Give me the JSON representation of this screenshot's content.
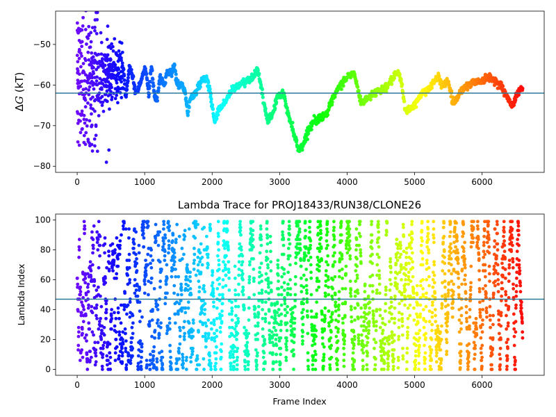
{
  "chart_data": [
    {
      "type": "scatter",
      "title": "",
      "xlabel": "",
      "ylabel": "ΔG (kT)",
      "ylabel_parts": {
        "delta": "Δ",
        "var": "G",
        "unit": " (kT)"
      },
      "xlim": [
        -320,
        6920
      ],
      "ylim": [
        -81.5,
        -41.8
      ],
      "xticks": [
        0,
        1000,
        2000,
        3000,
        4000,
        5000,
        6000
      ],
      "yticks": [
        -80,
        -70,
        -60,
        -50
      ],
      "hline": -62.0,
      "hline_color": "#2a7a9a",
      "colormap": "rainbow (red at early frames → violet at late frames)",
      "x_max": 6600,
      "trace_keypoints": [
        [
          680,
          -55
        ],
        [
          720,
          -63
        ],
        [
          770,
          -56
        ],
        [
          830,
          -58
        ],
        [
          860,
          -62
        ],
        [
          900,
          -61
        ],
        [
          960,
          -58
        ],
        [
          1000,
          -56
        ],
        [
          1030,
          -58
        ],
        [
          1060,
          -62
        ],
        [
          1100,
          -55
        ],
        [
          1140,
          -62
        ],
        [
          1180,
          -64
        ],
        [
          1230,
          -58
        ],
        [
          1290,
          -60
        ],
        [
          1330,
          -57
        ],
        [
          1400,
          -57
        ],
        [
          1440,
          -55
        ],
        [
          1480,
          -60
        ],
        [
          1560,
          -60
        ],
        [
          1600,
          -62
        ],
        [
          1640,
          -67
        ],
        [
          1680,
          -63
        ],
        [
          1720,
          -63
        ],
        [
          1800,
          -60
        ],
        [
          1900,
          -58
        ],
        [
          1960,
          -61
        ],
        [
          2040,
          -69
        ],
        [
          2100,
          -66
        ],
        [
          2200,
          -64
        ],
        [
          2300,
          -61
        ],
        [
          2400,
          -60
        ],
        [
          2500,
          -59
        ],
        [
          2600,
          -58
        ],
        [
          2680,
          -56
        ],
        [
          2760,
          -64
        ],
        [
          2820,
          -69
        ],
        [
          2900,
          -67
        ],
        [
          2960,
          -63
        ],
        [
          3060,
          -62
        ],
        [
          3120,
          -67
        ],
        [
          3200,
          -71
        ],
        [
          3280,
          -76
        ],
        [
          3340,
          -75
        ],
        [
          3400,
          -72
        ],
        [
          3500,
          -69
        ],
        [
          3600,
          -68
        ],
        [
          3700,
          -67
        ],
        [
          3800,
          -63
        ],
        [
          3900,
          -60
        ],
        [
          4000,
          -58
        ],
        [
          4100,
          -57
        ],
        [
          4200,
          -64
        ],
        [
          4260,
          -64
        ],
        [
          4320,
          -63
        ],
        [
          4400,
          -62
        ],
        [
          4500,
          -61
        ],
        [
          4560,
          -61
        ],
        [
          4650,
          -59
        ],
        [
          4700,
          -58
        ],
        [
          4760,
          -57
        ],
        [
          4800,
          -59
        ],
        [
          4860,
          -66
        ],
        [
          4940,
          -66
        ],
        [
          5000,
          -65
        ],
        [
          5100,
          -62
        ],
        [
          5200,
          -61
        ],
        [
          5300,
          -59
        ],
        [
          5360,
          -58
        ],
        [
          5400,
          -60
        ],
        [
          5500,
          -59
        ],
        [
          5560,
          -64
        ],
        [
          5600,
          -64
        ],
        [
          5700,
          -61
        ],
        [
          5800,
          -60
        ],
        [
          5900,
          -59
        ],
        [
          6000,
          -59
        ],
        [
          6080,
          -58
        ],
        [
          6200,
          -59
        ],
        [
          6280,
          -60
        ],
        [
          6340,
          -62
        ],
        [
          6400,
          -64
        ],
        [
          6440,
          -65
        ],
        [
          6500,
          -63
        ],
        [
          6560,
          -61
        ],
        [
          6600,
          -61
        ]
      ]
    },
    {
      "type": "scatter",
      "title": "Lambda Trace for PROJ18433/RUN38/CLONE26",
      "xlabel": "Frame Index",
      "ylabel": "Lambda Index",
      "xlim": [
        -320,
        6920
      ],
      "ylim": [
        -4,
        104
      ],
      "xticks": [
        0,
        1000,
        2000,
        3000,
        4000,
        5000,
        6000
      ],
      "yticks": [
        0,
        20,
        40,
        60,
        80,
        100
      ],
      "hline": 47,
      "hline_color": "#2a7a9a",
      "colormap": "rainbow (red at early frames → violet at late frames)",
      "x_max": 6600,
      "lambda_range": [
        0,
        99
      ]
    }
  ]
}
